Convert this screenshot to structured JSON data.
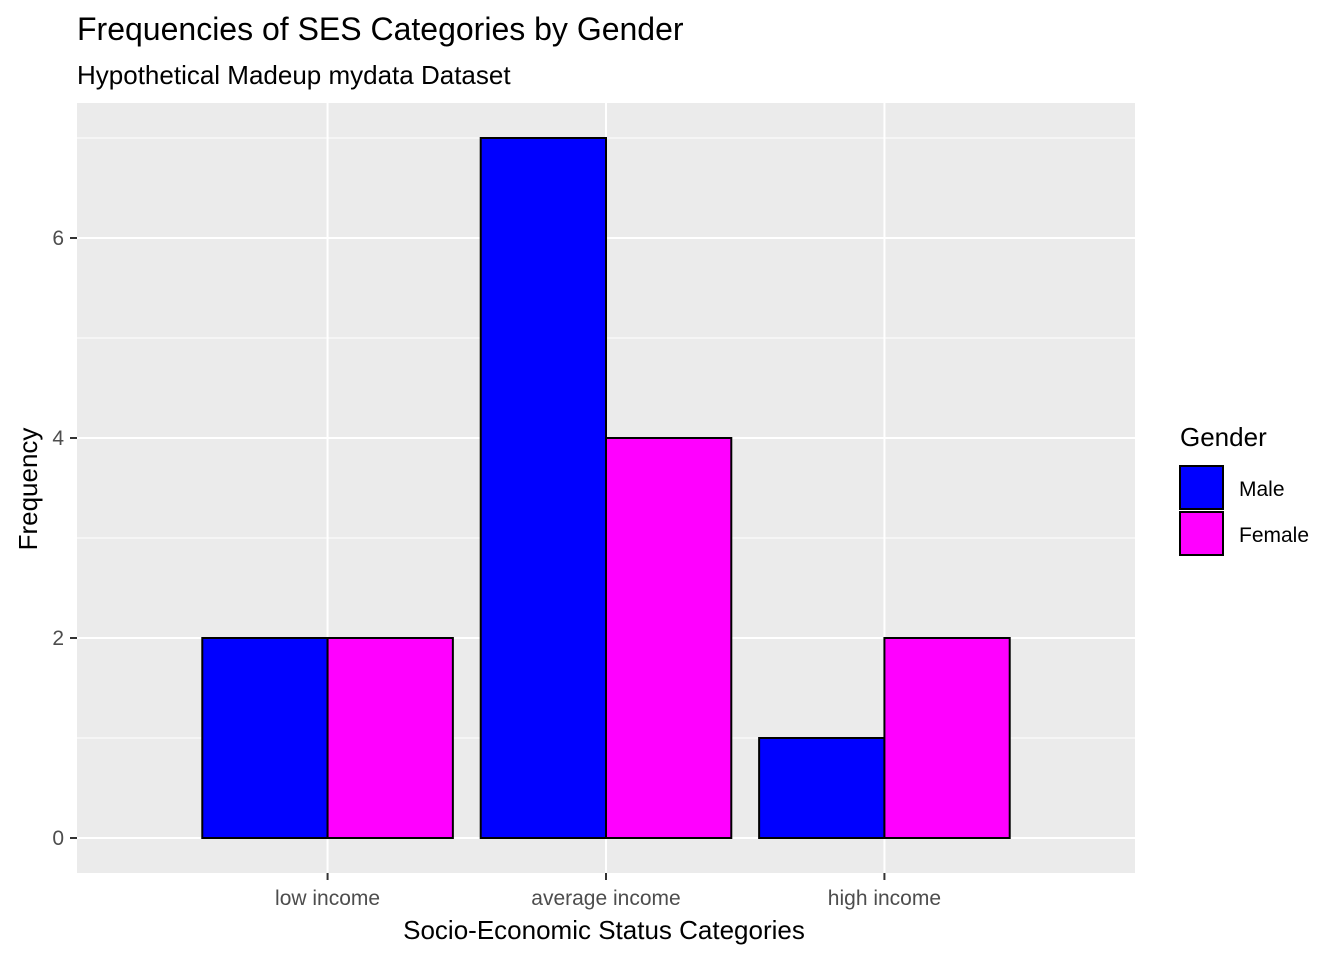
{
  "chart_data": {
    "type": "bar",
    "title": "Frequencies of SES Categories by Gender",
    "subtitle": "Hypothetical Madeup mydata Dataset",
    "xlabel": "Socio-Economic Status Categories",
    "ylabel": "Frequency",
    "categories": [
      "low income",
      "average income",
      "high income"
    ],
    "series": [
      {
        "name": "Male",
        "values": [
          2,
          7,
          1
        ],
        "color": "#0000ff"
      },
      {
        "name": "Female",
        "values": [
          2,
          4,
          2
        ],
        "color": "#ff00ff"
      }
    ],
    "ylim": [
      -0.35,
      7.35
    ],
    "yticks": [
      0,
      2,
      4,
      6
    ],
    "yticks_label": [
      "0",
      "2",
      "4",
      "6"
    ],
    "grid": true,
    "panel_background": "#ebebeb",
    "legend": {
      "title": "Gender",
      "position": "right"
    }
  }
}
